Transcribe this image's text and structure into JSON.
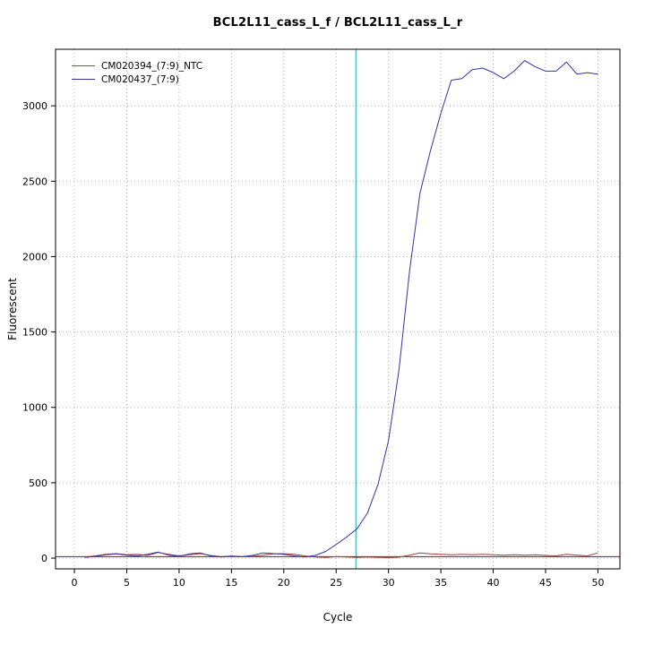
{
  "window": {
    "background": "#ffffff"
  },
  "chart_data": {
    "type": "line",
    "title": "BCL2L11_cass_L_f / BCL2L11_cass_L_r",
    "xlabel": "Cycle",
    "ylabel": "Fluorescent",
    "xlim": [
      -1.8,
      52.1
    ],
    "ylim": [
      -71,
      3375
    ],
    "xticks": [
      0,
      5,
      10,
      15,
      20,
      25,
      30,
      35,
      40,
      45,
      50
    ],
    "yticks": [
      0,
      500,
      1000,
      1500,
      2000,
      2500,
      3000
    ],
    "grid": "dotted",
    "grid_color": "#b5b5b5",
    "legend_position": "top-left",
    "x": [
      1,
      2,
      3,
      4,
      5,
      6,
      7,
      8,
      9,
      10,
      11,
      12,
      13,
      14,
      15,
      16,
      17,
      18,
      19,
      20,
      21,
      22,
      23,
      24,
      25,
      26,
      27,
      28,
      29,
      30,
      31,
      32,
      33,
      34,
      35,
      36,
      37,
      38,
      39,
      40,
      41,
      42,
      43,
      44,
      45,
      46,
      47,
      48,
      49,
      50
    ],
    "series": [
      {
        "name": "CM020394_(7:9)_NTC",
        "color": "#a04040",
        "values": [
          8,
          15,
          25,
          30,
          22,
          25,
          18,
          38,
          25,
          15,
          22,
          30,
          18,
          10,
          14,
          10,
          12,
          20,
          28,
          30,
          25,
          15,
          8,
          5,
          10,
          8,
          5,
          8,
          5,
          3,
          6,
          20,
          35,
          28,
          25,
          22,
          25,
          22,
          25,
          22,
          20,
          22,
          20,
          22,
          18,
          15,
          25,
          20,
          15,
          35
        ]
      },
      {
        "name": "CM020437_(7:9)",
        "color": "#3333a0",
        "values": [
          5,
          12,
          22,
          28,
          20,
          15,
          25,
          40,
          20,
          12,
          28,
          35,
          15,
          8,
          14,
          10,
          18,
          35,
          30,
          25,
          15,
          8,
          18,
          45,
          90,
          140,
          195,
          300,
          490,
          780,
          1250,
          1900,
          2420,
          2700,
          2950,
          3170,
          3180,
          3240,
          3250,
          3220,
          3180,
          3230,
          3300,
          3260,
          3230,
          3230,
          3290,
          3210,
          3220,
          3210
        ]
      }
    ],
    "threshold_line": {
      "y": 10,
      "color": "#8b1a1a"
    },
    "ct_line": {
      "x": 26.9,
      "color": "#00dfe8"
    }
  }
}
